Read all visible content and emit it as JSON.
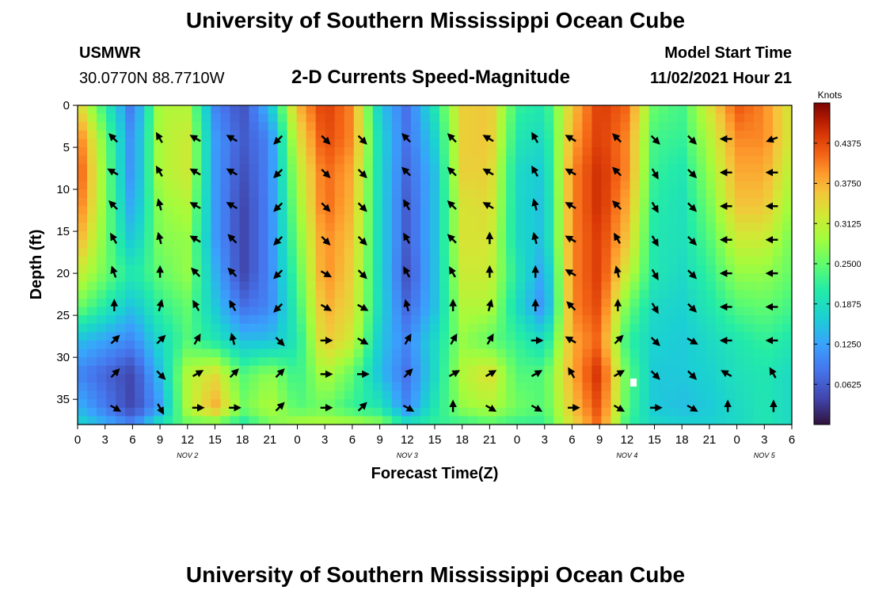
{
  "header": {
    "title": "University of Southern Mississippi Ocean Cube",
    "station": "USMWR",
    "coordinates": "30.0770N  88.7710W",
    "product": "2-D Currents Speed-Magnitude",
    "model_start_label": "Model Start Time",
    "model_start_value": "11/02/2021 Hour 21"
  },
  "footer": {
    "title": "University of Southern Mississippi Ocean Cube"
  },
  "chart_data": {
    "type": "heatmap",
    "title": "2-D Currents Speed-Magnitude",
    "xlabel": "Forecast Time(Z)",
    "ylabel": "Depth (ft)",
    "x_ticks": [
      "0",
      "3",
      "6",
      "9",
      "12",
      "15",
      "18",
      "21",
      "0",
      "3",
      "6",
      "9",
      "12",
      "15",
      "18",
      "21",
      "0",
      "3",
      "6",
      "9",
      "12",
      "15",
      "18",
      "21",
      "0",
      "3",
      "6"
    ],
    "x_range_hours": [
      0,
      78
    ],
    "y_ticks": [
      0,
      5,
      10,
      15,
      20,
      25,
      30,
      35
    ],
    "y_range_ft": [
      0,
      38
    ],
    "day_labels": [
      {
        "text": "NOV 2",
        "hour": 12
      },
      {
        "text": "NOV 3",
        "hour": 36
      },
      {
        "text": "NOV 4",
        "hour": 60
      },
      {
        "text": "NOV 5",
        "hour": 75
      }
    ],
    "colorbar": {
      "title": "Knots",
      "ticks": [
        "0.4375",
        "0.3750",
        "0.3125",
        "0.2500",
        "0.1875",
        "0.1250",
        "0.0625"
      ],
      "range": [
        0,
        0.5
      ]
    },
    "time_columns_hours": [
      0,
      6,
      9,
      12,
      15,
      18,
      21,
      24,
      27,
      30,
      33,
      36,
      39,
      42,
      45,
      48,
      51,
      54,
      57,
      60,
      63,
      66,
      69,
      72,
      75,
      78
    ],
    "depth_rows_ft": [
      0,
      4,
      8,
      12,
      16,
      20,
      24,
      28,
      32,
      36,
      38
    ],
    "speed_knots": [
      [
        0.35,
        0.08,
        0.3,
        0.3,
        0.1,
        0.05,
        0.15,
        0.37,
        0.45,
        0.4,
        0.16,
        0.08,
        0.2,
        0.35,
        0.36,
        0.22,
        0.2,
        0.36,
        0.45,
        0.42,
        0.25,
        0.23,
        0.33,
        0.43,
        0.4,
        0.32
      ],
      [
        0.42,
        0.1,
        0.3,
        0.32,
        0.12,
        0.06,
        0.1,
        0.33,
        0.44,
        0.4,
        0.18,
        0.08,
        0.17,
        0.35,
        0.36,
        0.2,
        0.18,
        0.38,
        0.45,
        0.4,
        0.23,
        0.22,
        0.3,
        0.4,
        0.4,
        0.32
      ],
      [
        0.44,
        0.1,
        0.3,
        0.32,
        0.12,
        0.05,
        0.1,
        0.3,
        0.42,
        0.38,
        0.18,
        0.07,
        0.15,
        0.35,
        0.35,
        0.18,
        0.16,
        0.4,
        0.46,
        0.4,
        0.22,
        0.2,
        0.28,
        0.38,
        0.38,
        0.3
      ],
      [
        0.42,
        0.12,
        0.28,
        0.3,
        0.12,
        0.04,
        0.1,
        0.28,
        0.42,
        0.37,
        0.18,
        0.06,
        0.15,
        0.33,
        0.34,
        0.18,
        0.15,
        0.4,
        0.46,
        0.38,
        0.21,
        0.19,
        0.26,
        0.36,
        0.36,
        0.28
      ],
      [
        0.38,
        0.15,
        0.27,
        0.28,
        0.12,
        0.04,
        0.1,
        0.26,
        0.4,
        0.36,
        0.18,
        0.06,
        0.15,
        0.33,
        0.33,
        0.18,
        0.15,
        0.4,
        0.45,
        0.36,
        0.2,
        0.19,
        0.24,
        0.32,
        0.32,
        0.26
      ],
      [
        0.32,
        0.2,
        0.25,
        0.28,
        0.14,
        0.04,
        0.1,
        0.24,
        0.4,
        0.35,
        0.18,
        0.05,
        0.15,
        0.32,
        0.32,
        0.2,
        0.12,
        0.4,
        0.45,
        0.32,
        0.2,
        0.18,
        0.22,
        0.28,
        0.28,
        0.25
      ],
      [
        0.26,
        0.15,
        0.22,
        0.25,
        0.16,
        0.08,
        0.1,
        0.22,
        0.38,
        0.34,
        0.18,
        0.07,
        0.15,
        0.3,
        0.3,
        0.18,
        0.1,
        0.4,
        0.44,
        0.26,
        0.18,
        0.17,
        0.2,
        0.24,
        0.25,
        0.23
      ],
      [
        0.15,
        0.1,
        0.18,
        0.24,
        0.2,
        0.15,
        0.15,
        0.2,
        0.36,
        0.32,
        0.16,
        0.1,
        0.18,
        0.28,
        0.25,
        0.22,
        0.18,
        0.38,
        0.42,
        0.22,
        0.17,
        0.16,
        0.18,
        0.2,
        0.22,
        0.2
      ],
      [
        0.1,
        0.04,
        0.15,
        0.3,
        0.34,
        0.24,
        0.28,
        0.22,
        0.3,
        0.25,
        0.15,
        0.08,
        0.18,
        0.3,
        0.34,
        0.24,
        0.24,
        0.38,
        0.46,
        0.25,
        0.16,
        0.16,
        0.17,
        0.19,
        0.2,
        0.18
      ],
      [
        0.14,
        0.04,
        0.12,
        0.3,
        0.38,
        0.26,
        0.3,
        0.24,
        0.26,
        0.22,
        0.2,
        0.1,
        0.2,
        0.28,
        0.3,
        0.26,
        0.24,
        0.36,
        0.44,
        0.24,
        0.16,
        0.15,
        0.16,
        0.18,
        0.2,
        0.18
      ],
      [
        0.18,
        0.1,
        0.2,
        0.25,
        0.25,
        0.2,
        0.26,
        0.3,
        0.3,
        0.3,
        0.28,
        0.2,
        0.22,
        0.22,
        0.24,
        0.22,
        0.22,
        0.34,
        0.42,
        0.22,
        0.18,
        0.17,
        0.17,
        0.18,
        0.2,
        0.18
      ]
    ],
    "current_vectors": {
      "time_hours": [
        4,
        9,
        13,
        17,
        22,
        27,
        31,
        36,
        41,
        45,
        50,
        54,
        59,
        63,
        67,
        71,
        76
      ],
      "depth_ft": [
        4,
        8,
        12,
        16,
        20,
        24,
        28,
        32,
        36
      ],
      "direction_deg_clockwise_from_north": [
        [
          315,
          330,
          300,
          300,
          225,
          135,
          135,
          315,
          315,
          300,
          330,
          300,
          315,
          135,
          135,
          270,
          250
        ],
        [
          300,
          330,
          300,
          300,
          225,
          135,
          135,
          315,
          315,
          300,
          330,
          300,
          315,
          150,
          135,
          270,
          270
        ],
        [
          315,
          345,
          300,
          300,
          225,
          135,
          135,
          330,
          315,
          300,
          345,
          300,
          315,
          150,
          135,
          270,
          270
        ],
        [
          330,
          345,
          300,
          315,
          225,
          135,
          135,
          330,
          315,
          0,
          345,
          300,
          330,
          150,
          135,
          270,
          270
        ],
        [
          340,
          0,
          315,
          315,
          225,
          120,
          135,
          330,
          330,
          0,
          0,
          300,
          345,
          150,
          135,
          270,
          270
        ],
        [
          0,
          15,
          330,
          330,
          225,
          120,
          120,
          345,
          0,
          15,
          0,
          315,
          0,
          150,
          135,
          270,
          270
        ],
        [
          45,
          45,
          30,
          345,
          135,
          90,
          120,
          30,
          30,
          30,
          90,
          300,
          45,
          135,
          120,
          270,
          270
        ],
        [
          45,
          135,
          60,
          45,
          45,
          90,
          90,
          45,
          60,
          60,
          60,
          330,
          60,
          135,
          135,
          300,
          330
        ],
        [
          120,
          150,
          90,
          90,
          45,
          90,
          45,
          120,
          0,
          120,
          120,
          90,
          120,
          90,
          120,
          0,
          0
        ]
      ]
    }
  }
}
